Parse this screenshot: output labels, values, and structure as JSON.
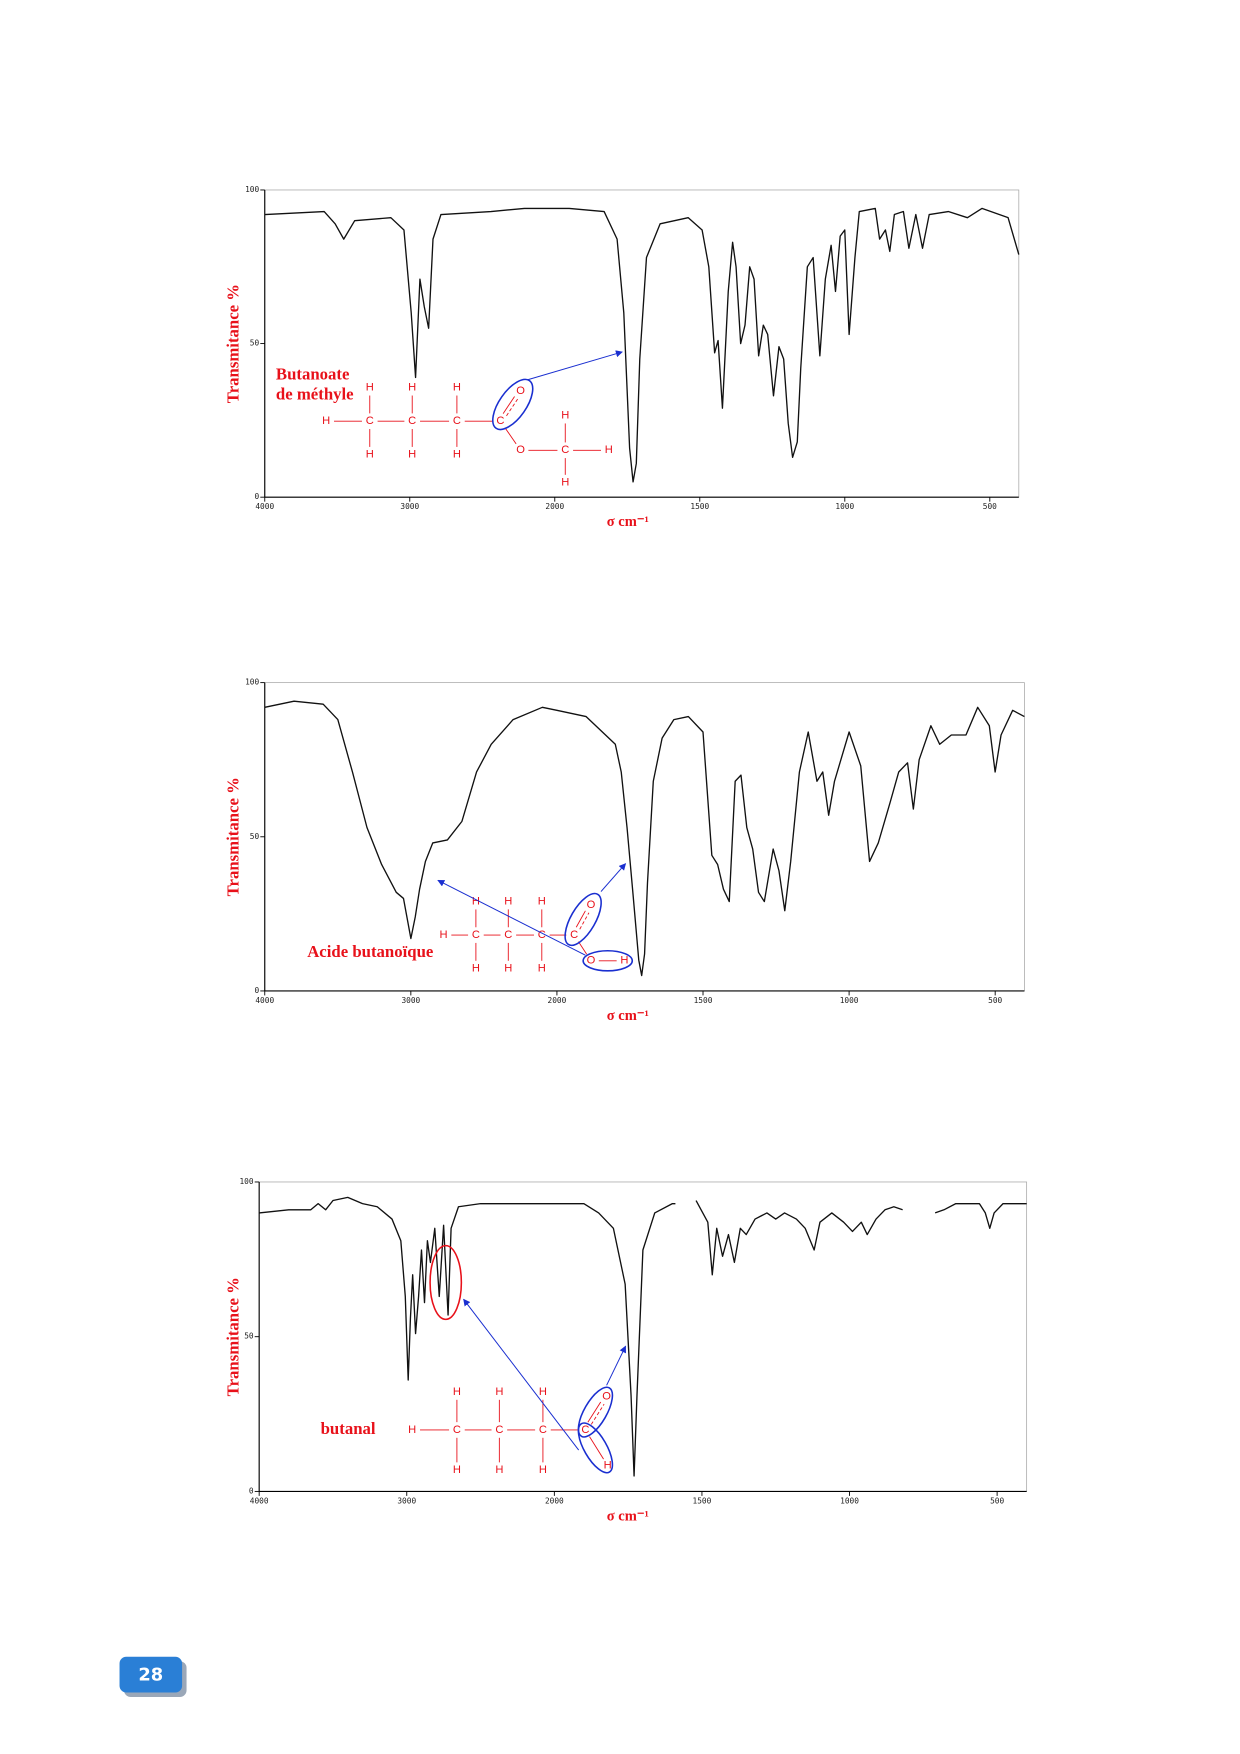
{
  "chart_data": [
    {
      "type": "line",
      "y_label": "Transmitance  %",
      "x_label": "σ   cm⁻¹",
      "annotation": [
        "Butanoate",
        "de méthyle"
      ],
      "atoms": [
        "H",
        "C",
        "C",
        "C",
        "C",
        "O",
        "O",
        "C",
        "H",
        "H",
        "H",
        "H",
        "H",
        "H",
        "H",
        "H",
        "H"
      ],
      "color": "#111111",
      "xlim": [
        4000,
        400
      ],
      "xticks": [
        4000,
        3000,
        2000,
        1500,
        1000,
        500
      ],
      "ylim": [
        0,
        100
      ],
      "yticks": [
        0,
        50,
        100
      ],
      "x": [
        4000,
        3590,
        3515,
        3455,
        3380,
        3130,
        3040,
        2990,
        2960,
        2930,
        2900,
        2870,
        2840,
        2785,
        2440,
        2210,
        1950,
        1830,
        1785,
        1762,
        1742,
        1730,
        1719,
        1707,
        1684,
        1637,
        1540,
        1492,
        1469,
        1449,
        1437,
        1422,
        1402,
        1387,
        1375,
        1359,
        1344,
        1328,
        1313,
        1297,
        1281,
        1266,
        1246,
        1227,
        1211,
        1195,
        1180,
        1164,
        1152,
        1129,
        1109,
        1086,
        1067,
        1047,
        1032,
        1016,
        1000,
        985,
        965,
        950,
        895,
        880,
        860,
        845,
        829,
        798,
        779,
        755,
        732,
        709,
        643,
        577,
        527,
        437,
        400
      ],
      "values": [
        92,
        93,
        89,
        84,
        90,
        91,
        87,
        60,
        39,
        71,
        62,
        55,
        84,
        92,
        93,
        94,
        94,
        93,
        84,
        60,
        16,
        5,
        11,
        45,
        78,
        89,
        91,
        87,
        75,
        47,
        51,
        29,
        67,
        83,
        75,
        50,
        56,
        75,
        71,
        46,
        56,
        53,
        33,
        49,
        45,
        24,
        13,
        18,
        42,
        75,
        78,
        46,
        71,
        82,
        67,
        85,
        87,
        53,
        78,
        93,
        94,
        84,
        87,
        80,
        92,
        93,
        81,
        92,
        81,
        92,
        93,
        91,
        94,
        91,
        79
      ]
    },
    {
      "type": "line",
      "y_label": "Transmitance  %",
      "x_label": "σ   cm⁻¹",
      "annotation": [
        "Acide butanoïque"
      ],
      "atoms": [
        "H",
        "C",
        "C",
        "C",
        "C",
        "O",
        "O",
        "H",
        "H",
        "H",
        "H",
        "H",
        "H",
        "H"
      ],
      "color": "#111111",
      "xlim": [
        4000,
        400
      ],
      "xticks": [
        4000,
        3000,
        2000,
        1500,
        1000,
        500
      ],
      "ylim": [
        0,
        100
      ],
      "yticks": [
        0,
        50,
        100
      ],
      "x": [
        4000,
        3800,
        3600,
        3500,
        3400,
        3300,
        3200,
        3100,
        3050,
        3000,
        2970,
        2940,
        2900,
        2850,
        2750,
        2650,
        2550,
        2450,
        2300,
        2100,
        2000,
        1900,
        1800,
        1780,
        1760,
        1740,
        1720,
        1710,
        1700,
        1690,
        1670,
        1640,
        1600,
        1550,
        1500,
        1470,
        1450,
        1430,
        1410,
        1390,
        1370,
        1350,
        1330,
        1310,
        1290,
        1260,
        1240,
        1220,
        1200,
        1170,
        1140,
        1110,
        1090,
        1070,
        1050,
        1000,
        960,
        930,
        900,
        860,
        830,
        800,
        780,
        760,
        720,
        690,
        650,
        600,
        560,
        520,
        500,
        480,
        440,
        400
      ],
      "values": [
        92,
        94,
        93,
        88,
        71,
        53,
        41,
        32,
        30,
        17,
        24,
        33,
        42,
        48,
        49,
        55,
        71,
        80,
        88,
        92,
        91,
        89,
        80,
        71,
        53,
        32,
        10,
        5,
        12,
        35,
        68,
        82,
        88,
        89,
        84,
        44,
        41,
        33,
        29,
        68,
        70,
        53,
        46,
        32,
        29,
        46,
        39,
        26,
        42,
        71,
        84,
        68,
        71,
        57,
        68,
        84,
        73,
        42,
        48,
        61,
        71,
        74,
        59,
        75,
        86,
        80,
        83,
        83,
        92,
        86,
        71,
        83,
        91,
        89
      ]
    },
    {
      "type": "line",
      "y_label": "Transmitance  %",
      "x_label": "σ   cm⁻¹",
      "annotation": [
        "butanal"
      ],
      "atoms": [
        "H",
        "C",
        "C",
        "C",
        "C",
        "O",
        "H",
        "H",
        "H",
        "H",
        "H",
        "H",
        "H"
      ],
      "color": "#111111",
      "xlim": [
        4000,
        400
      ],
      "xticks": [
        4000,
        3000,
        2000,
        1500,
        1000,
        500
      ],
      "ylim": [
        0,
        100
      ],
      "yticks": [
        0,
        50,
        100
      ],
      "x": [
        4000,
        3800,
        3650,
        3600,
        3550,
        3500,
        3400,
        3300,
        3200,
        3100,
        3040,
        3010,
        2990,
        2975,
        2960,
        2940,
        2920,
        2900,
        2880,
        2860,
        2840,
        2810,
        2780,
        2750,
        2720,
        2700,
        2650,
        2500,
        2000,
        1900,
        1850,
        1800,
        1760,
        1740,
        1730,
        1720,
        1700,
        1660,
        1600,
        1590,
        1570,
        1520,
        1480,
        1465,
        1450,
        1430,
        1410,
        1390,
        1370,
        1350,
        1320,
        1280,
        1250,
        1220,
        1180,
        1150,
        1120,
        1100,
        1060,
        1020,
        990,
        960,
        940,
        910,
        880,
        850,
        820,
        800,
        710,
        680,
        640,
        560,
        540,
        525,
        510,
        480,
        400
      ],
      "values": [
        90,
        91,
        91,
        93,
        91,
        94,
        95,
        93,
        92,
        88,
        81,
        63,
        36,
        56,
        70,
        51,
        63,
        78,
        61,
        81,
        74,
        85,
        63,
        86,
        57,
        85,
        92,
        93,
        93,
        93,
        90,
        85,
        67,
        31,
        5,
        31,
        78,
        90,
        93,
        93,
        null,
        94,
        87,
        70,
        85,
        76,
        83,
        74,
        85,
        83,
        88,
        90,
        88,
        90,
        88,
        85,
        78,
        87,
        90,
        87,
        84,
        87,
        83,
        88,
        91,
        92,
        91,
        null,
        90,
        91,
        93,
        93,
        90,
        85,
        90,
        93,
        93
      ]
    }
  ],
  "page_number": "28"
}
